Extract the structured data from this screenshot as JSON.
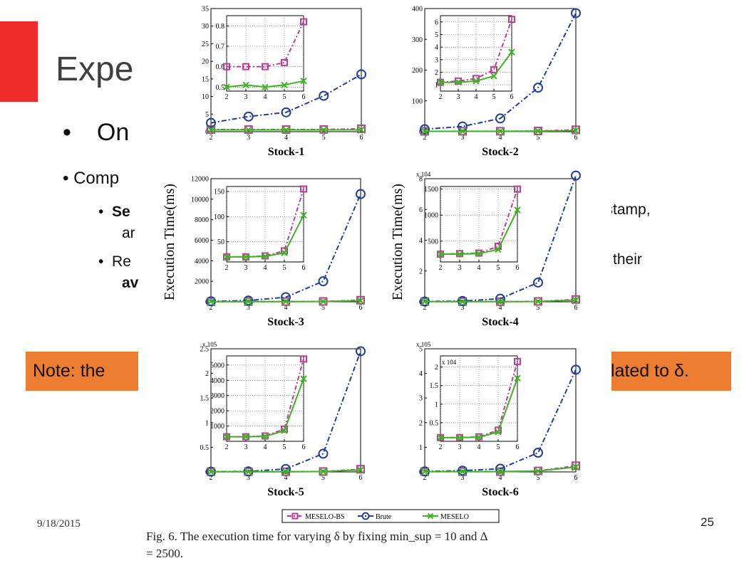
{
  "slide": {
    "title": "Expe",
    "bullet1": "On",
    "bullet2": "Comp",
    "sub1_bold": "Se",
    "sub1_line2": "ar",
    "sub2_line1": "Re",
    "sub2_line2_bold": "av",
    "right_frag1": "e stamp,",
    "right_frag2": "se their",
    "note_left": "Note: the",
    "note_right": "lated to δ.",
    "date": "9/18/2015",
    "page": "25"
  },
  "figure": {
    "ylabel": "Execution Time(ms)",
    "legend": [
      "MESELO-BS",
      "Brute",
      "MESELO"
    ],
    "caption_line1": "Fig. 6.   The execution time for varying δ by fixing min_sup = 10 and Δ",
    "caption_line2": "= 2500.",
    "colors": {
      "MESELO-BS": "#c0399a",
      "Brute": "#1f3f99",
      "MESELO": "#3cb521"
    }
  },
  "chart_data": [
    {
      "type": "line",
      "title": "Stock-1",
      "x": [
        2,
        3,
        4,
        5,
        6
      ],
      "xlim": [
        2,
        6
      ],
      "ylim": [
        0,
        35
      ],
      "yticks": [
        0,
        5,
        10,
        15,
        20,
        25,
        30,
        35
      ],
      "exponent": "",
      "series": [
        {
          "name": "MESELO-BS",
          "values": [
            0.6,
            0.6,
            0.6,
            0.62,
            0.82
          ]
        },
        {
          "name": "Brute",
          "values": [
            2.5,
            4.3,
            5.5,
            10.2,
            16.3
          ]
        },
        {
          "name": "MESELO",
          "values": [
            0.5,
            0.51,
            0.5,
            0.51,
            0.53
          ]
        }
      ],
      "inset": {
        "x": [
          2,
          3,
          4,
          5,
          6
        ],
        "ylim": [
          0.48,
          0.85
        ],
        "yticks": [
          0.5,
          0.6,
          0.7,
          0.8
        ],
        "series": [
          {
            "name": "MESELO-BS",
            "values": [
              0.6,
              0.6,
              0.6,
              0.62,
              0.82
            ]
          },
          {
            "name": "MESELO",
            "values": [
              0.5,
              0.51,
              0.5,
              0.51,
              0.53
            ]
          }
        ]
      }
    },
    {
      "type": "line",
      "title": "Stock-2",
      "x": [
        2,
        3,
        4,
        5,
        6
      ],
      "xlim": [
        2,
        6
      ],
      "ylim": [
        0,
        400
      ],
      "yticks": [
        0,
        100,
        200,
        300,
        400
      ],
      "exponent": "",
      "series": [
        {
          "name": "MESELO-BS",
          "values": [
            1.2,
            1.3,
            1.5,
            2.2,
            6.2
          ]
        },
        {
          "name": "Brute",
          "values": [
            8,
            17,
            43,
            143,
            385
          ]
        },
        {
          "name": "MESELO",
          "values": [
            1.2,
            1.2,
            1.3,
            1.7,
            3.6
          ]
        }
      ],
      "inset": {
        "x": [
          2,
          3,
          4,
          5,
          6
        ],
        "ylim": [
          0.5,
          6.5
        ],
        "yticks": [
          1,
          2,
          3,
          4,
          5,
          6
        ],
        "series": [
          {
            "name": "MESELO-BS",
            "values": [
              1.2,
              1.3,
              1.5,
              2.2,
              6.2
            ]
          },
          {
            "name": "MESELO",
            "values": [
              1.2,
              1.2,
              1.3,
              1.7,
              3.6
            ]
          }
        ]
      }
    },
    {
      "type": "line",
      "title": "Stock-3",
      "x": [
        2,
        3,
        4,
        5,
        6
      ],
      "xlim": [
        2,
        6
      ],
      "ylim": [
        0,
        12000
      ],
      "yticks": [
        0,
        2000,
        4000,
        6000,
        8000,
        10000,
        12000
      ],
      "exponent": "",
      "series": [
        {
          "name": "MESELO-BS",
          "values": [
            20,
            20,
            22,
            32,
            155
          ]
        },
        {
          "name": "Brute",
          "values": [
            50,
            120,
            450,
            2000,
            10500
          ]
        },
        {
          "name": "MESELO",
          "values": [
            20,
            20,
            21,
            28,
            103
          ]
        }
      ],
      "inset": {
        "x": [
          2,
          3,
          4,
          5,
          6
        ],
        "ylim": [
          10,
          160
        ],
        "yticks": [
          50,
          100,
          150
        ],
        "series": [
          {
            "name": "MESELO-BS",
            "values": [
              20,
              20,
              22,
              32,
              155
            ]
          },
          {
            "name": "MESELO",
            "values": [
              20,
              20,
              21,
              28,
              103
            ]
          }
        ]
      }
    },
    {
      "type": "line",
      "title": "Stock-4",
      "x": [
        2,
        3,
        4,
        5,
        6
      ],
      "xlim": [
        2,
        6
      ],
      "ylim": [
        0,
        8
      ],
      "yticks": [
        0,
        2,
        4,
        6,
        8
      ],
      "exponent": "x 10^4",
      "series": [
        {
          "name": "MESELO-BS",
          "values": [
            0.01,
            0.01,
            0.012,
            0.025,
            0.15
          ]
        },
        {
          "name": "Brute",
          "values": [
            0.02,
            0.05,
            0.2,
            1.25,
            8.2
          ]
        },
        {
          "name": "MESELO",
          "values": [
            0.01,
            0.01,
            0.011,
            0.02,
            0.11
          ]
        }
      ],
      "inset": {
        "x": [
          2,
          3,
          4,
          5,
          6
        ],
        "ylim": [
          100,
          1550
        ],
        "yticks": [
          500,
          1000,
          1500
        ],
        "series": [
          {
            "name": "MESELO-BS",
            "values": [
              250,
              260,
              270,
              400,
              1500
            ]
          },
          {
            "name": "MESELO",
            "values": [
              250,
              250,
              260,
              340,
              1100
            ]
          }
        ]
      }
    },
    {
      "type": "line",
      "title": "Stock-5",
      "x": [
        2,
        3,
        4,
        5,
        6
      ],
      "xlim": [
        2,
        6
      ],
      "ylim": [
        0,
        2.5
      ],
      "yticks": [
        0,
        0.5,
        1,
        1.5,
        2,
        2.5
      ],
      "exponent": "x 10^5",
      "series": [
        {
          "name": "MESELO-BS",
          "values": [
            0.003,
            0.003,
            0.004,
            0.008,
            0.055
          ]
        },
        {
          "name": "Brute",
          "values": [
            0.005,
            0.01,
            0.06,
            0.37,
            2.45
          ]
        },
        {
          "name": "MESELO",
          "values": [
            0.003,
            0.003,
            0.003,
            0.007,
            0.04
          ]
        }
      ],
      "inset": {
        "x": [
          2,
          3,
          4,
          5,
          6
        ],
        "ylim": [
          0,
          5600
        ],
        "yticks": [
          1000,
          2000,
          3000,
          4000,
          5000
        ],
        "series": [
          {
            "name": "MESELO-BS",
            "values": [
              300,
              300,
              350,
              800,
              5400
            ]
          },
          {
            "name": "MESELO",
            "values": [
              300,
              300,
              320,
              700,
              4100
            ]
          }
        ]
      }
    },
    {
      "type": "line",
      "title": "Stock-6",
      "x": [
        2,
        3,
        4,
        5,
        6
      ],
      "xlim": [
        2,
        6
      ],
      "ylim": [
        0,
        5
      ],
      "yticks": [
        0,
        1,
        2,
        3,
        4,
        5
      ],
      "exponent": "x 10^5",
      "series": [
        {
          "name": "MESELO-BS",
          "values": [
            0.01,
            0.01,
            0.012,
            0.04,
            0.25
          ]
        },
        {
          "name": "Brute",
          "values": [
            0.02,
            0.05,
            0.13,
            0.78,
            4.15
          ]
        },
        {
          "name": "MESELO",
          "values": [
            0.01,
            0.01,
            0.011,
            0.035,
            0.2
          ]
        }
      ],
      "inset": {
        "x": [
          2,
          3,
          4,
          5,
          6
        ],
        "ylim": [
          0,
          2.3
        ],
        "yticks": [
          0.5,
          1,
          1.5,
          2
        ],
        "exponent": "x 10^4",
        "series": [
          {
            "name": "MESELO-BS",
            "values": [
              0.1,
              0.1,
              0.12,
              0.3,
              2.15
            ]
          },
          {
            "name": "MESELO",
            "values": [
              0.1,
              0.1,
              0.11,
              0.25,
              1.7
            ]
          }
        ]
      }
    }
  ]
}
